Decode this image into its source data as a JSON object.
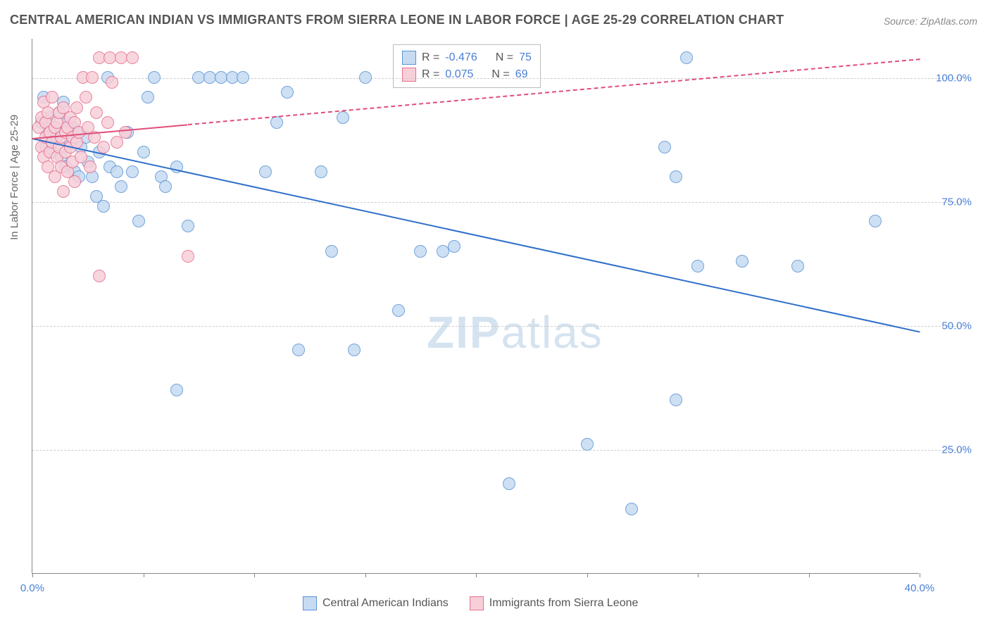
{
  "title": "CENTRAL AMERICAN INDIAN VS IMMIGRANTS FROM SIERRA LEONE IN LABOR FORCE | AGE 25-29 CORRELATION CHART",
  "source": "Source: ZipAtlas.com",
  "ylabel": "In Labor Force | Age 25-29",
  "watermark_a": "ZIP",
  "watermark_b": "atlas",
  "chart": {
    "type": "scatter",
    "xlim": [
      0,
      40
    ],
    "ylim": [
      0,
      108
    ],
    "xtick_positions": [
      0,
      5,
      10,
      15,
      20,
      25,
      30,
      35,
      40
    ],
    "xtick_labels": {
      "0": "0.0%",
      "40": "40.0%"
    },
    "ytick_positions": [
      25,
      50,
      75,
      100
    ],
    "ytick_labels": [
      "25.0%",
      "50.0%",
      "75.0%",
      "100.0%"
    ],
    "grid_color": "#cccccc",
    "background_color": "#ffffff",
    "marker_radius": 9,
    "marker_stroke_width": 1.2,
    "series": [
      {
        "name": "Central American Indians",
        "fill": "#c6dbf1",
        "stroke": "#5b93d6",
        "trend": {
          "color": "#2f6fc9",
          "width": 2.4,
          "dash_cutover_x": 40,
          "x0": 0,
          "y0": 88,
          "x1": 40,
          "y1": 49
        },
        "R": "-0.476",
        "N": "75",
        "points": [
          [
            0.4,
            91
          ],
          [
            0.5,
            96
          ],
          [
            0.6,
            86
          ],
          [
            0.7,
            89
          ],
          [
            0.8,
            92
          ],
          [
            0.9,
            85
          ],
          [
            1.0,
            90
          ],
          [
            1.1,
            88
          ],
          [
            1.2,
            93
          ],
          [
            1.3,
            84
          ],
          [
            1.4,
            95
          ],
          [
            1.5,
            82
          ],
          [
            1.6,
            91
          ],
          [
            1.7,
            87
          ],
          [
            1.8,
            90
          ],
          [
            1.9,
            81
          ],
          [
            2.0,
            89
          ],
          [
            2.1,
            80
          ],
          [
            2.2,
            86
          ],
          [
            2.4,
            88
          ],
          [
            2.5,
            83
          ],
          [
            2.7,
            80
          ],
          [
            2.9,
            76
          ],
          [
            3.0,
            85
          ],
          [
            3.2,
            74
          ],
          [
            3.4,
            100
          ],
          [
            3.5,
            82
          ],
          [
            3.8,
            81
          ],
          [
            4.0,
            78
          ],
          [
            4.3,
            89
          ],
          [
            4.5,
            81
          ],
          [
            4.8,
            71
          ],
          [
            5.0,
            85
          ],
          [
            5.2,
            96
          ],
          [
            5.5,
            100
          ],
          [
            5.8,
            80
          ],
          [
            6.0,
            78
          ],
          [
            6.5,
            37
          ],
          [
            6.5,
            82
          ],
          [
            7.0,
            70
          ],
          [
            7.5,
            100
          ],
          [
            8.0,
            100
          ],
          [
            8.5,
            100
          ],
          [
            9.0,
            100
          ],
          [
            9.5,
            100
          ],
          [
            10.5,
            81
          ],
          [
            11.0,
            91
          ],
          [
            11.5,
            97
          ],
          [
            12.0,
            45
          ],
          [
            13.0,
            81
          ],
          [
            13.5,
            65
          ],
          [
            14.0,
            92
          ],
          [
            14.5,
            45
          ],
          [
            15.0,
            100
          ],
          [
            16.5,
            53
          ],
          [
            17.5,
            65
          ],
          [
            18.5,
            65
          ],
          [
            19.0,
            66
          ],
          [
            21.5,
            18
          ],
          [
            25.0,
            26
          ],
          [
            27.0,
            13
          ],
          [
            28.5,
            86
          ],
          [
            29.0,
            35
          ],
          [
            29.5,
            104
          ],
          [
            30.0,
            62
          ],
          [
            29.0,
            80
          ],
          [
            32.0,
            63
          ],
          [
            34.5,
            62
          ],
          [
            38.0,
            71
          ]
        ]
      },
      {
        "name": "Immigrants from Sierra Leone",
        "fill": "#f7cfd9",
        "stroke": "#e76f8f",
        "trend": {
          "color": "#e04d78",
          "width": 2.2,
          "dash_cutover_x": 7,
          "x0": 0,
          "y0": 88,
          "x1": 40,
          "y1": 104
        },
        "R": "0.075",
        "N": "69",
        "points": [
          [
            0.3,
            90
          ],
          [
            0.4,
            86
          ],
          [
            0.4,
            92
          ],
          [
            0.5,
            84
          ],
          [
            0.5,
            95
          ],
          [
            0.6,
            88
          ],
          [
            0.6,
            91
          ],
          [
            0.7,
            82
          ],
          [
            0.7,
            93
          ],
          [
            0.8,
            89
          ],
          [
            0.8,
            85
          ],
          [
            0.9,
            96
          ],
          [
            0.9,
            87
          ],
          [
            1.0,
            90
          ],
          [
            1.0,
            80
          ],
          [
            1.1,
            91
          ],
          [
            1.1,
            84
          ],
          [
            1.2,
            93
          ],
          [
            1.2,
            86
          ],
          [
            1.3,
            88
          ],
          [
            1.3,
            82
          ],
          [
            1.4,
            94
          ],
          [
            1.4,
            77
          ],
          [
            1.5,
            89
          ],
          [
            1.5,
            85
          ],
          [
            1.6,
            90
          ],
          [
            1.6,
            81
          ],
          [
            1.7,
            92
          ],
          [
            1.7,
            86
          ],
          [
            1.8,
            88
          ],
          [
            1.8,
            83
          ],
          [
            1.9,
            91
          ],
          [
            1.9,
            79
          ],
          [
            2.0,
            94
          ],
          [
            2.0,
            87
          ],
          [
            2.1,
            89
          ],
          [
            2.2,
            84
          ],
          [
            2.3,
            100
          ],
          [
            2.4,
            96
          ],
          [
            2.5,
            90
          ],
          [
            2.6,
            82
          ],
          [
            2.7,
            100
          ],
          [
            2.8,
            88
          ],
          [
            2.9,
            93
          ],
          [
            3.0,
            104
          ],
          [
            3.5,
            104
          ],
          [
            3.0,
            60
          ],
          [
            3.2,
            86
          ],
          [
            3.4,
            91
          ],
          [
            3.6,
            99
          ],
          [
            3.8,
            87
          ],
          [
            4.0,
            104
          ],
          [
            4.2,
            89
          ],
          [
            4.5,
            104
          ],
          [
            7.0,
            64
          ]
        ]
      }
    ]
  },
  "legend_box": {
    "rows": [
      {
        "swatch_fill": "#c6dbf1",
        "swatch_stroke": "#5b93d6",
        "r_label": "R =",
        "r_val": "-0.476",
        "n_label": "N =",
        "n_val": "75"
      },
      {
        "swatch_fill": "#f7cfd9",
        "swatch_stroke": "#e76f8f",
        "r_label": "R =",
        "r_val": "0.075",
        "n_label": "N =",
        "n_val": "69"
      }
    ]
  },
  "bottom_legend": [
    {
      "fill": "#c6dbf1",
      "stroke": "#5b93d6",
      "label": "Central American Indians"
    },
    {
      "fill": "#f7cfd9",
      "stroke": "#e76f8f",
      "label": "Immigrants from Sierra Leone"
    }
  ]
}
